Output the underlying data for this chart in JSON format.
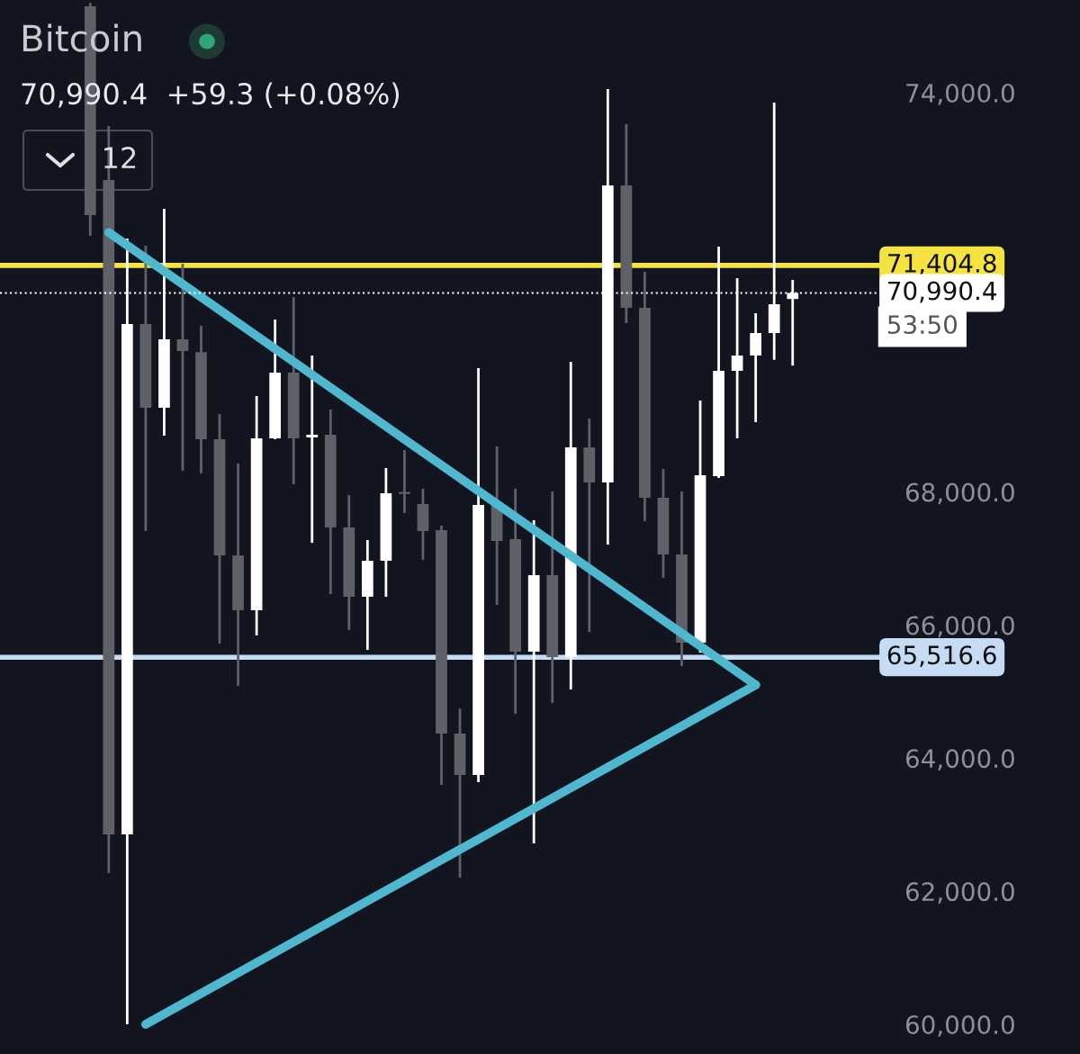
{
  "chart_data": {
    "type": "candlestick",
    "title": "Bitcoin",
    "subtitle": "70,990.4  +59.3 (+0.08%)",
    "annotations": [
      "12",
      "53:50"
    ],
    "categories": [
      null,
      null,
      null,
      null,
      null,
      null,
      null,
      null,
      null,
      null,
      null,
      null,
      null,
      null,
      null,
      null,
      null,
      null,
      null,
      null,
      null,
      null,
      null,
      null,
      null,
      null,
      null,
      null,
      null,
      null,
      null,
      null,
      null,
      null,
      null,
      null,
      null,
      null,
      null
    ],
    "ohlc": [
      [
        75300,
        75350,
        71849,
        72161
      ],
      [
        72688,
        73500,
        62272,
        62854
      ],
      [
        62854,
        71809,
        60000,
        70524
      ],
      [
        70524,
        71700,
        67412,
        69266
      ],
      [
        69266,
        72255,
        68846,
        70294
      ],
      [
        70294,
        71430,
        68319,
        70118
      ],
      [
        70100,
        70497,
        68278,
        68792
      ],
      [
        68792,
        69171,
        65721,
        67047
      ],
      [
        67047,
        68427,
        65086,
        66222
      ],
      [
        66222,
        69441,
        65843,
        68806
      ],
      [
        68806,
        70591,
        68792,
        69793
      ],
      [
        69793,
        70929,
        68116,
        68806
      ],
      [
        68820,
        70050,
        67236,
        68860
      ],
      [
        68860,
        69238,
        66465,
        67466
      ],
      [
        67466,
        67953,
        65924,
        66425
      ],
      [
        66425,
        67277,
        65627,
        66966
      ],
      [
        66966,
        68359,
        66425,
        67980
      ],
      [
        68000,
        68630,
        67683,
        67970
      ],
      [
        67818,
        68048,
        66980,
        67412
      ],
      [
        67426,
        67493,
        63598,
        64369
      ],
      [
        64369,
        64747,
        62204,
        63747
      ],
      [
        63747,
        69861,
        63638,
        67805
      ],
      [
        67805,
        68684,
        66303,
        67264
      ],
      [
        67291,
        68048,
        64666,
        65600
      ],
      [
        65600,
        67575,
        62718,
        66750
      ],
      [
        66750,
        68007,
        64829,
        65519
      ],
      [
        65519,
        69955,
        65032,
        68670
      ],
      [
        68670,
        69103,
        65897,
        68143
      ],
      [
        68143,
        74054,
        67210,
        72607
      ],
      [
        72607,
        73527,
        70537,
        70767
      ],
      [
        70767,
        71308,
        67561,
        67913
      ],
      [
        67913,
        68346,
        66709,
        67061
      ],
      [
        67061,
        68007,
        65383,
        65735
      ],
      [
        65735,
        69374,
        65586,
        68251
      ],
      [
        68238,
        71687,
        68210,
        69820
      ],
      [
        69820,
        71213,
        68806,
        70050
      ],
      [
        70050,
        70686,
        69049,
        70388
      ],
      [
        70388,
        73851,
        69987,
        70821
      ],
      [
        70900,
        71186,
        69899,
        70990
      ]
    ],
    "colors": [
      "#5f6068",
      "#5f6068",
      "#ffffff",
      "#5f6068",
      "#ffffff",
      "#5f6068",
      "#5f6068",
      "#5f6068",
      "#5f6068",
      "#ffffff",
      "#ffffff",
      "#5f6068",
      "#ffffff",
      "#5f6068",
      "#5f6068",
      "#ffffff",
      "#ffffff",
      "#5f6068",
      "#5f6068",
      "#5f6068",
      "#5f6068",
      "#ffffff",
      "#5f6068",
      "#5f6068",
      "#ffffff",
      "#5f6068",
      "#ffffff",
      "#5f6068",
      "#ffffff",
      "#5f6068",
      "#5f6068",
      "#5f6068",
      "#5f6068",
      "#ffffff",
      "#ffffff",
      "#ffffff",
      "#ffffff",
      "#ffffff",
      "#ffffff"
    ],
    "series": [
      {
        "type": "line",
        "values": [
          null,
          71900,
          null,
          null,
          null,
          null,
          null,
          null,
          null,
          null,
          null,
          null,
          null,
          null,
          null,
          null,
          null,
          null,
          null,
          null,
          null,
          null,
          null,
          null,
          null,
          null,
          null,
          null,
          null,
          null,
          null,
          null,
          null,
          null,
          null,
          null,
          65100,
          null,
          null
        ],
        "color": "#4fb8cf"
      },
      {
        "type": "line",
        "values": [
          null,
          null,
          null,
          60000,
          null,
          null,
          null,
          null,
          null,
          null,
          null,
          null,
          null,
          null,
          null,
          null,
          null,
          null,
          null,
          null,
          null,
          null,
          null,
          null,
          null,
          null,
          null,
          null,
          null,
          null,
          null,
          null,
          null,
          null,
          null,
          null,
          65100,
          null,
          null
        ],
        "color": "#4fb8cf"
      }
    ],
    "ref_lines": [
      {
        "axis": "y",
        "value": 71404.8,
        "label": "71,404.8",
        "color": "#f5e342",
        "line_style": "solid"
      },
      {
        "axis": "y",
        "value": 65516.6,
        "label": "65,516.6",
        "color": "#c6dcf5",
        "line_style": "solid"
      },
      {
        "axis": "y",
        "value": 70990.4,
        "label": "70,990.4",
        "color": "#ffffff",
        "line_style": "dotted"
      }
    ],
    "ylim": [
      59554,
      75393
    ],
    "yticks": [
      {
        "value": 60000,
        "label": "60,000.0"
      },
      {
        "value": 62000,
        "label": "62,000.0"
      },
      {
        "value": 64000,
        "label": "64,000.0"
      },
      {
        "value": 66000,
        "label": "66,000.0"
      },
      {
        "value": 68000,
        "label": "68,000.0"
      },
      {
        "value": 74000,
        "label": "74,000.0"
      }
    ],
    "tick_labels": "y",
    "grid": false
  }
}
